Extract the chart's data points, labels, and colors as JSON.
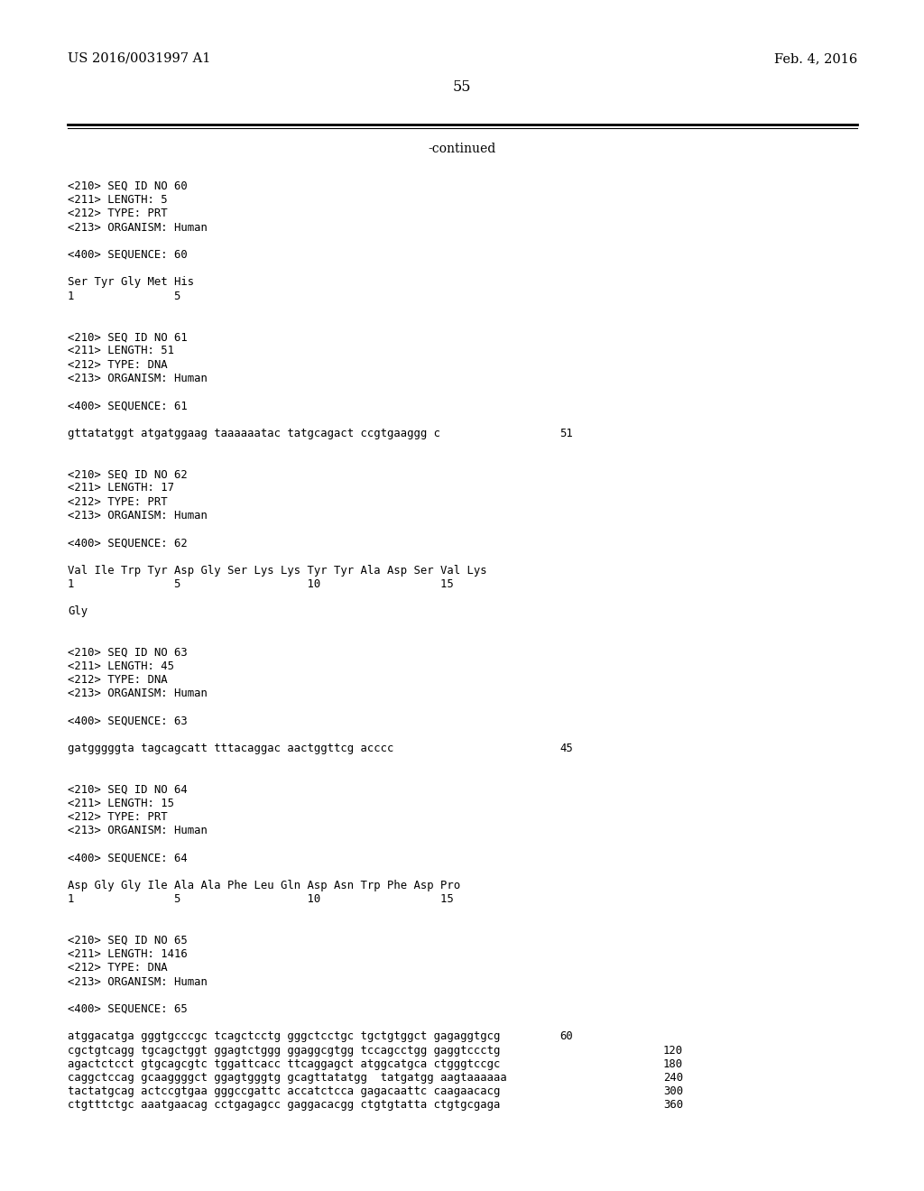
{
  "header_left": "US 2016/0031997 A1",
  "header_right": "Feb. 4, 2016",
  "page_number": "55",
  "continued_text": "-continued",
  "background_color": "#ffffff",
  "text_color": "#000000",
  "header_fontsize": 10.5,
  "page_num_fontsize": 11.5,
  "continued_fontsize": 10.0,
  "mono_fontsize": 8.8,
  "content_lines": [
    {
      "type": "mono",
      "text": "<210> SEQ ID NO 60"
    },
    {
      "type": "mono",
      "text": "<211> LENGTH: 5"
    },
    {
      "type": "mono",
      "text": "<212> TYPE: PRT"
    },
    {
      "type": "mono",
      "text": "<213> ORGANISM: Human"
    },
    {
      "type": "blank"
    },
    {
      "type": "mono",
      "text": "<400> SEQUENCE: 60"
    },
    {
      "type": "blank"
    },
    {
      "type": "mono",
      "text": "Ser Tyr Gly Met His"
    },
    {
      "type": "mono",
      "text": "1               5"
    },
    {
      "type": "blank"
    },
    {
      "type": "blank"
    },
    {
      "type": "mono",
      "text": "<210> SEQ ID NO 61"
    },
    {
      "type": "mono",
      "text": "<211> LENGTH: 51"
    },
    {
      "type": "mono",
      "text": "<212> TYPE: DNA"
    },
    {
      "type": "mono",
      "text": "<213> ORGANISM: Human"
    },
    {
      "type": "blank"
    },
    {
      "type": "mono",
      "text": "<400> SEQUENCE: 61"
    },
    {
      "type": "blank"
    },
    {
      "type": "mono_num",
      "text": "gttatatggt atgatggaag taaaaaatac tatgcagact ccgtgaaggg c",
      "num": "51"
    },
    {
      "type": "blank"
    },
    {
      "type": "blank"
    },
    {
      "type": "mono",
      "text": "<210> SEQ ID NO 62"
    },
    {
      "type": "mono",
      "text": "<211> LENGTH: 17"
    },
    {
      "type": "mono",
      "text": "<212> TYPE: PRT"
    },
    {
      "type": "mono",
      "text": "<213> ORGANISM: Human"
    },
    {
      "type": "blank"
    },
    {
      "type": "mono",
      "text": "<400> SEQUENCE: 62"
    },
    {
      "type": "blank"
    },
    {
      "type": "mono",
      "text": "Val Ile Trp Tyr Asp Gly Ser Lys Lys Tyr Tyr Ala Asp Ser Val Lys"
    },
    {
      "type": "mono",
      "text": "1               5                   10                  15"
    },
    {
      "type": "blank"
    },
    {
      "type": "mono",
      "text": "Gly"
    },
    {
      "type": "blank"
    },
    {
      "type": "blank"
    },
    {
      "type": "mono",
      "text": "<210> SEQ ID NO 63"
    },
    {
      "type": "mono",
      "text": "<211> LENGTH: 45"
    },
    {
      "type": "mono",
      "text": "<212> TYPE: DNA"
    },
    {
      "type": "mono",
      "text": "<213> ORGANISM: Human"
    },
    {
      "type": "blank"
    },
    {
      "type": "mono",
      "text": "<400> SEQUENCE: 63"
    },
    {
      "type": "blank"
    },
    {
      "type": "mono_num",
      "text": "gatgggggta tagcagcatt tttacaggac aactggttcg acccc",
      "num": "45"
    },
    {
      "type": "blank"
    },
    {
      "type": "blank"
    },
    {
      "type": "mono",
      "text": "<210> SEQ ID NO 64"
    },
    {
      "type": "mono",
      "text": "<211> LENGTH: 15"
    },
    {
      "type": "mono",
      "text": "<212> TYPE: PRT"
    },
    {
      "type": "mono",
      "text": "<213> ORGANISM: Human"
    },
    {
      "type": "blank"
    },
    {
      "type": "mono",
      "text": "<400> SEQUENCE: 64"
    },
    {
      "type": "blank"
    },
    {
      "type": "mono",
      "text": "Asp Gly Gly Ile Ala Ala Phe Leu Gln Asp Asn Trp Phe Asp Pro"
    },
    {
      "type": "mono",
      "text": "1               5                   10                  15"
    },
    {
      "type": "blank"
    },
    {
      "type": "blank"
    },
    {
      "type": "mono",
      "text": "<210> SEQ ID NO 65"
    },
    {
      "type": "mono",
      "text": "<211> LENGTH: 1416"
    },
    {
      "type": "mono",
      "text": "<212> TYPE: DNA"
    },
    {
      "type": "mono",
      "text": "<213> ORGANISM: Human"
    },
    {
      "type": "blank"
    },
    {
      "type": "mono",
      "text": "<400> SEQUENCE: 65"
    },
    {
      "type": "blank"
    },
    {
      "type": "mono_num",
      "text": "atggacatga gggtgcccgc tcagctcctg gggctcctgc tgctgtggct gagaggtgcg",
      "num": "60"
    },
    {
      "type": "mono_num",
      "text": "cgctgtcagg tgcagctggt ggagtctggg ggaggcgtgg tccagcctgg gaggtccctg",
      "num": "120"
    },
    {
      "type": "mono_num",
      "text": "agactctcct gtgcagcgtc tggattcacc ttcaggagct atggcatgca ctgggtccgc",
      "num": "180"
    },
    {
      "type": "mono_num",
      "text": "caggctccag gcaaggggct ggagtgggtg gcagttatatgg  tatgatgg aagtaaaaaa",
      "num": "240"
    },
    {
      "type": "mono_num",
      "text": "tactatgcag actccgtgaa gggccgattc accatctcca gagacaattc caagaacacg",
      "num": "300"
    },
    {
      "type": "mono_num",
      "text": "ctgtttctgc aaatgaacag cctgagagcc gaggacacgg ctgtgtatta ctgtgcgaga",
      "num": "360"
    }
  ]
}
